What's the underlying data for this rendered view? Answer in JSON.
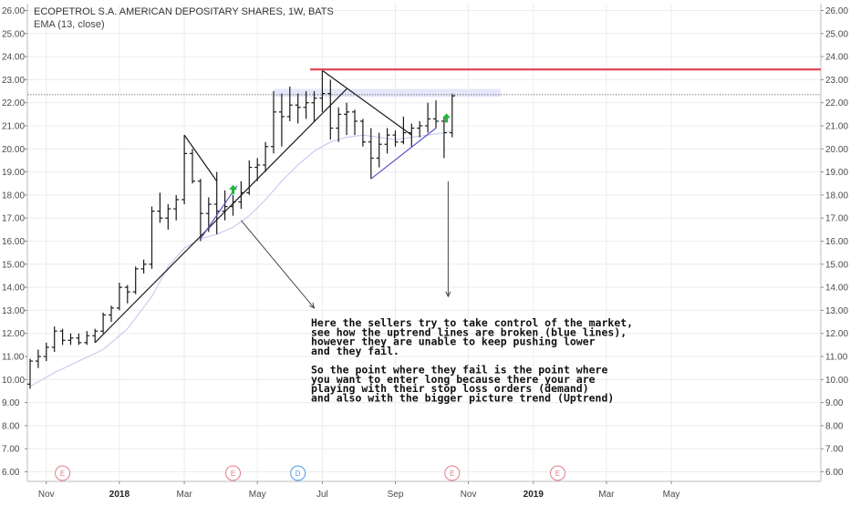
{
  "header": {
    "symbol_title": "ECOPETROL S.A. AMERICAN DEPOSITARY SHARES, 1W, BATS",
    "indicator": "EMA (13, close)"
  },
  "colors": {
    "bar": "#1a1a1a",
    "ema": "#c9cdf0",
    "trendline": "#1a1a1a",
    "blue_trendline": "#5a55c8",
    "resistance": "#e0334a",
    "zone": "#e6e8fa",
    "arrow_up": "#22b53a",
    "event_earnings": "#e57a8a",
    "event_dividend": "#4a9be8",
    "grid": "#ececec",
    "dotted_level": "#555555"
  },
  "chart_data": {
    "type": "ohlc-bar",
    "title": "ECOPETROL S.A. AMERICAN DEPOSITARY SHARES, 1W, BATS",
    "y_axis": {
      "ticks": [
        "26.00",
        "25.00",
        "24.00",
        "23.00",
        "22.00",
        "21.00",
        "20.00",
        "19.00",
        "18.00",
        "17.00",
        "16.00",
        "15.00",
        "14.00",
        "13.00",
        "12.00",
        "11.00",
        "10.00",
        "9.00",
        "8.00",
        "7.00",
        "6.00"
      ],
      "range": [
        5.8,
        26.4
      ]
    },
    "x_axis": {
      "labels": [
        {
          "text": "Nov",
          "week": 2,
          "bold": false
        },
        {
          "text": "2018",
          "week": 11,
          "bold": true
        },
        {
          "text": "Mar",
          "week": 19,
          "bold": false
        },
        {
          "text": "May",
          "week": 28,
          "bold": false
        },
        {
          "text": "Jul",
          "week": 36,
          "bold": false
        },
        {
          "text": "Sep",
          "week": 45,
          "bold": false
        },
        {
          "text": "Nov",
          "week": 54,
          "bold": false
        },
        {
          "text": "2019",
          "week": 62,
          "bold": true
        },
        {
          "text": "Mar",
          "week": 71,
          "bold": false
        },
        {
          "text": "May",
          "week": 79,
          "bold": false
        }
      ]
    },
    "series": [
      {
        "values": [
          {
            "w": 0,
            "o": 9.8,
            "h": 10.9,
            "l": 9.6,
            "c": 10.8
          },
          {
            "w": 1,
            "o": 10.8,
            "h": 11.3,
            "l": 10.5,
            "c": 11.0
          },
          {
            "w": 2,
            "o": 11.0,
            "h": 11.6,
            "l": 10.8,
            "c": 11.4
          },
          {
            "w": 3,
            "o": 11.4,
            "h": 12.3,
            "l": 11.2,
            "c": 12.1
          },
          {
            "w": 4,
            "o": 12.1,
            "h": 12.2,
            "l": 11.5,
            "c": 11.7
          },
          {
            "w": 5,
            "o": 11.7,
            "h": 12.0,
            "l": 11.5,
            "c": 11.8
          },
          {
            "w": 6,
            "o": 11.8,
            "h": 12.0,
            "l": 11.5,
            "c": 11.6
          },
          {
            "w": 7,
            "o": 11.6,
            "h": 12.1,
            "l": 11.5,
            "c": 11.9
          },
          {
            "w": 8,
            "o": 11.9,
            "h": 12.2,
            "l": 11.6,
            "c": 12.1
          },
          {
            "w": 9,
            "o": 12.1,
            "h": 12.9,
            "l": 12.0,
            "c": 12.8
          },
          {
            "w": 10,
            "o": 12.8,
            "h": 13.2,
            "l": 12.5,
            "c": 13.1
          },
          {
            "w": 11,
            "o": 13.1,
            "h": 14.2,
            "l": 13.0,
            "c": 14.0
          },
          {
            "w": 12,
            "o": 14.0,
            "h": 14.1,
            "l": 13.3,
            "c": 13.8
          },
          {
            "w": 13,
            "o": 13.8,
            "h": 14.9,
            "l": 13.7,
            "c": 14.8
          },
          {
            "w": 14,
            "o": 14.8,
            "h": 15.2,
            "l": 14.6,
            "c": 15.0
          },
          {
            "w": 15,
            "o": 15.0,
            "h": 17.5,
            "l": 14.8,
            "c": 17.3
          },
          {
            "w": 16,
            "o": 17.3,
            "h": 18.1,
            "l": 16.8,
            "c": 17.0
          },
          {
            "w": 17,
            "o": 17.0,
            "h": 17.6,
            "l": 16.5,
            "c": 17.4
          },
          {
            "w": 18,
            "o": 17.4,
            "h": 18.0,
            "l": 16.9,
            "c": 17.8
          },
          {
            "w": 19,
            "o": 17.8,
            "h": 20.6,
            "l": 17.6,
            "c": 19.8
          },
          {
            "w": 20,
            "o": 19.8,
            "h": 20.0,
            "l": 18.5,
            "c": 18.6
          },
          {
            "w": 21,
            "o": 18.6,
            "h": 18.7,
            "l": 16.0,
            "c": 17.2
          },
          {
            "w": 22,
            "o": 17.2,
            "h": 17.9,
            "l": 16.4,
            "c": 17.6
          },
          {
            "w": 23,
            "o": 17.6,
            "h": 19.0,
            "l": 16.3,
            "c": 17.3
          },
          {
            "w": 24,
            "o": 17.3,
            "h": 18.2,
            "l": 16.9,
            "c": 17.5
          },
          {
            "w": 25,
            "o": 17.5,
            "h": 18.0,
            "l": 17.1,
            "c": 17.7
          },
          {
            "w": 26,
            "o": 17.7,
            "h": 18.6,
            "l": 17.4,
            "c": 18.1
          },
          {
            "w": 27,
            "o": 18.1,
            "h": 19.5,
            "l": 18.0,
            "c": 19.2
          },
          {
            "w": 28,
            "o": 19.2,
            "h": 19.6,
            "l": 18.6,
            "c": 19.3
          },
          {
            "w": 29,
            "o": 19.3,
            "h": 20.3,
            "l": 19.0,
            "c": 20.1
          },
          {
            "w": 30,
            "o": 20.1,
            "h": 22.5,
            "l": 19.8,
            "c": 21.6
          },
          {
            "w": 31,
            "o": 21.6,
            "h": 22.4,
            "l": 20.1,
            "c": 21.4
          },
          {
            "w": 32,
            "o": 21.4,
            "h": 22.7,
            "l": 21.2,
            "c": 21.9
          },
          {
            "w": 33,
            "o": 21.9,
            "h": 22.4,
            "l": 21.1,
            "c": 21.8
          },
          {
            "w": 34,
            "o": 21.8,
            "h": 22.5,
            "l": 21.3,
            "c": 22.0
          },
          {
            "w": 35,
            "o": 22.0,
            "h": 22.5,
            "l": 21.2,
            "c": 22.2
          },
          {
            "w": 36,
            "o": 22.2,
            "h": 23.4,
            "l": 21.6,
            "c": 22.4
          },
          {
            "w": 37,
            "o": 22.4,
            "h": 23.0,
            "l": 20.4,
            "c": 20.9
          },
          {
            "w": 38,
            "o": 20.9,
            "h": 21.8,
            "l": 20.3,
            "c": 21.5
          },
          {
            "w": 39,
            "o": 21.5,
            "h": 22.0,
            "l": 20.6,
            "c": 21.6
          },
          {
            "w": 40,
            "o": 21.6,
            "h": 21.7,
            "l": 20.6,
            "c": 21.2
          },
          {
            "w": 41,
            "o": 21.2,
            "h": 21.3,
            "l": 20.1,
            "c": 20.3
          },
          {
            "w": 42,
            "o": 20.3,
            "h": 20.9,
            "l": 18.7,
            "c": 19.6
          },
          {
            "w": 43,
            "o": 19.6,
            "h": 20.7,
            "l": 19.2,
            "c": 20.2
          },
          {
            "w": 44,
            "o": 20.2,
            "h": 20.9,
            "l": 19.8,
            "c": 20.6
          },
          {
            "w": 45,
            "o": 20.6,
            "h": 20.8,
            "l": 20.1,
            "c": 20.3
          },
          {
            "w": 46,
            "o": 20.3,
            "h": 21.4,
            "l": 20.2,
            "c": 20.7
          },
          {
            "w": 47,
            "o": 20.7,
            "h": 21.1,
            "l": 20.1,
            "c": 20.9
          },
          {
            "w": 48,
            "o": 20.9,
            "h": 21.2,
            "l": 20.5,
            "c": 21.0
          },
          {
            "w": 49,
            "o": 21.0,
            "h": 22.0,
            "l": 20.7,
            "c": 21.3
          },
          {
            "w": 50,
            "o": 21.3,
            "h": 22.1,
            "l": 20.9,
            "c": 21.2
          },
          {
            "w": 51,
            "o": 21.2,
            "h": 21.4,
            "l": 19.6,
            "c": 20.7
          },
          {
            "w": 52,
            "o": 20.7,
            "h": 22.4,
            "l": 20.5,
            "c": 22.3
          }
        ]
      },
      {
        "values": [
          {
            "w": 0,
            "v": 9.7
          },
          {
            "w": 3,
            "v": 10.3
          },
          {
            "w": 6,
            "v": 10.8
          },
          {
            "w": 9,
            "v": 11.3
          },
          {
            "w": 12,
            "v": 12.2
          },
          {
            "w": 15,
            "v": 13.6
          },
          {
            "w": 17,
            "v": 14.9
          },
          {
            "w": 19,
            "v": 15.7
          },
          {
            "w": 21,
            "v": 16.1
          },
          {
            "w": 23,
            "v": 16.3
          },
          {
            "w": 25,
            "v": 16.6
          },
          {
            "w": 27,
            "v": 17.1
          },
          {
            "w": 29,
            "v": 17.8
          },
          {
            "w": 31,
            "v": 18.6
          },
          {
            "w": 33,
            "v": 19.3
          },
          {
            "w": 35,
            "v": 19.9
          },
          {
            "w": 37,
            "v": 20.3
          },
          {
            "w": 39,
            "v": 20.5
          },
          {
            "w": 41,
            "v": 20.6
          },
          {
            "w": 43,
            "v": 20.5
          },
          {
            "w": 45,
            "v": 20.4
          },
          {
            "w": 47,
            "v": 20.5
          },
          {
            "w": 49,
            "v": 20.6
          },
          {
            "w": 51,
            "v": 20.7
          },
          {
            "w": 52,
            "v": 20.8
          }
        ]
      }
    ],
    "drawings": {
      "resistance_level": 23.45,
      "dotted_level": 22.35,
      "zone": {
        "w_start": 30,
        "w_end": 58,
        "low": 22.25,
        "high": 22.6
      },
      "black_lines": [
        {
          "w1": 8,
          "p1": 11.6,
          "w2": 39,
          "p2": 22.6
        },
        {
          "w1": 36,
          "p1": 23.4,
          "w2": 47,
          "p2": 20.6
        },
        {
          "w1": 19,
          "p1": 20.6,
          "w2": 23,
          "p2": 18.6
        }
      ],
      "blue_lines": [
        {
          "w1": 21,
          "p1": 16.1,
          "w2": 25.5,
          "p2": 18.4
        },
        {
          "w1": 42,
          "p1": 18.7,
          "w2": 50,
          "p2": 20.9
        }
      ],
      "arrows": [
        {
          "w1": 26,
          "p1": 16.9,
          "w2": 35,
          "p2": 13.1
        },
        {
          "w1": 51.5,
          "p1": 18.6,
          "w2": 51.5,
          "p2": 13.6
        }
      ],
      "up_marks": [
        {
          "w": 25,
          "p": 18.2
        },
        {
          "w": 51.3,
          "p": 21.3
        }
      ]
    },
    "events": [
      {
        "type": "earnings",
        "letter": "E",
        "week": 4
      },
      {
        "type": "earnings",
        "letter": "E",
        "week": 25
      },
      {
        "type": "dividend",
        "letter": "D",
        "week": 33
      },
      {
        "type": "earnings",
        "letter": "E",
        "week": 52
      },
      {
        "type": "earnings",
        "letter": "E",
        "week": 65
      }
    ],
    "annotation": [
      "Here the sellers try to take control of the market,",
      "see how the uptrend lines are broken (blue lines),",
      "however they are unable to keep pushing lower",
      "and they fail.",
      "",
      "So the point where they fail is the point where",
      "you want to enter long because there your are",
      "playing with their stop loss orders (demand)",
      "and also with the bigger picture trend (Uptrend)"
    ]
  }
}
